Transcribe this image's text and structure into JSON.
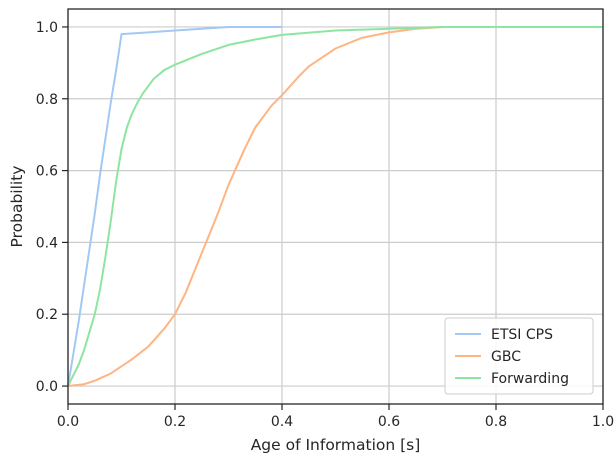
{
  "chart_data": {
    "type": "line",
    "title": "",
    "xlabel": "Age of Information [s]",
    "ylabel": "Probability",
    "xlim": [
      0.0,
      1.0
    ],
    "ylim": [
      -0.05,
      1.05
    ],
    "x_ticks": [
      0.0,
      0.2,
      0.4,
      0.6,
      0.8,
      1.0
    ],
    "x_tick_labels": [
      "0.0",
      "0.2",
      "0.4",
      "0.6",
      "0.8",
      "1.0"
    ],
    "y_ticks": [
      0.0,
      0.2,
      0.4,
      0.6,
      0.8,
      1.0
    ],
    "y_tick_labels": [
      "0.0",
      "0.2",
      "0.4",
      "0.6",
      "0.8",
      "1.0"
    ],
    "grid": true,
    "legend_position": "bottom-right",
    "series": [
      {
        "name": "ETSI CPS",
        "color": "#a1c9f4",
        "points": [
          [
            0.0,
            0.0
          ],
          [
            0.01,
            0.09
          ],
          [
            0.02,
            0.18
          ],
          [
            0.03,
            0.28
          ],
          [
            0.04,
            0.38
          ],
          [
            0.05,
            0.48
          ],
          [
            0.06,
            0.59
          ],
          [
            0.07,
            0.69
          ],
          [
            0.08,
            0.79
          ],
          [
            0.09,
            0.88
          ],
          [
            0.1,
            0.98
          ],
          [
            0.15,
            0.985
          ],
          [
            0.2,
            0.99
          ],
          [
            0.25,
            0.995
          ],
          [
            0.3,
            1.0
          ],
          [
            0.4,
            1.0
          ]
        ]
      },
      {
        "name": "GBC",
        "color": "#ffb482",
        "points": [
          [
            0.0,
            0.0
          ],
          [
            0.03,
            0.005
          ],
          [
            0.05,
            0.015
          ],
          [
            0.08,
            0.035
          ],
          [
            0.1,
            0.055
          ],
          [
            0.12,
            0.075
          ],
          [
            0.15,
            0.11
          ],
          [
            0.18,
            0.16
          ],
          [
            0.2,
            0.2
          ],
          [
            0.22,
            0.26
          ],
          [
            0.25,
            0.37
          ],
          [
            0.28,
            0.48
          ],
          [
            0.3,
            0.56
          ],
          [
            0.33,
            0.66
          ],
          [
            0.35,
            0.72
          ],
          [
            0.38,
            0.78
          ],
          [
            0.4,
            0.81
          ],
          [
            0.43,
            0.86
          ],
          [
            0.45,
            0.89
          ],
          [
            0.48,
            0.92
          ],
          [
            0.5,
            0.94
          ],
          [
            0.55,
            0.97
          ],
          [
            0.6,
            0.985
          ],
          [
            0.65,
            0.995
          ],
          [
            0.7,
            1.0
          ],
          [
            1.0,
            1.0
          ]
        ]
      },
      {
        "name": "Forwarding",
        "color": "#8de5a1",
        "points": [
          [
            0.0,
            0.0
          ],
          [
            0.01,
            0.03
          ],
          [
            0.02,
            0.06
          ],
          [
            0.03,
            0.1
          ],
          [
            0.04,
            0.15
          ],
          [
            0.05,
            0.2
          ],
          [
            0.06,
            0.27
          ],
          [
            0.07,
            0.36
          ],
          [
            0.08,
            0.46
          ],
          [
            0.09,
            0.57
          ],
          [
            0.1,
            0.66
          ],
          [
            0.11,
            0.72
          ],
          [
            0.12,
            0.76
          ],
          [
            0.13,
            0.79
          ],
          [
            0.14,
            0.815
          ],
          [
            0.15,
            0.835
          ],
          [
            0.16,
            0.855
          ],
          [
            0.18,
            0.88
          ],
          [
            0.2,
            0.895
          ],
          [
            0.25,
            0.925
          ],
          [
            0.3,
            0.95
          ],
          [
            0.35,
            0.965
          ],
          [
            0.4,
            0.978
          ],
          [
            0.5,
            0.99
          ],
          [
            0.6,
            0.995
          ],
          [
            0.7,
            1.0
          ],
          [
            1.0,
            1.0
          ]
        ]
      }
    ]
  }
}
